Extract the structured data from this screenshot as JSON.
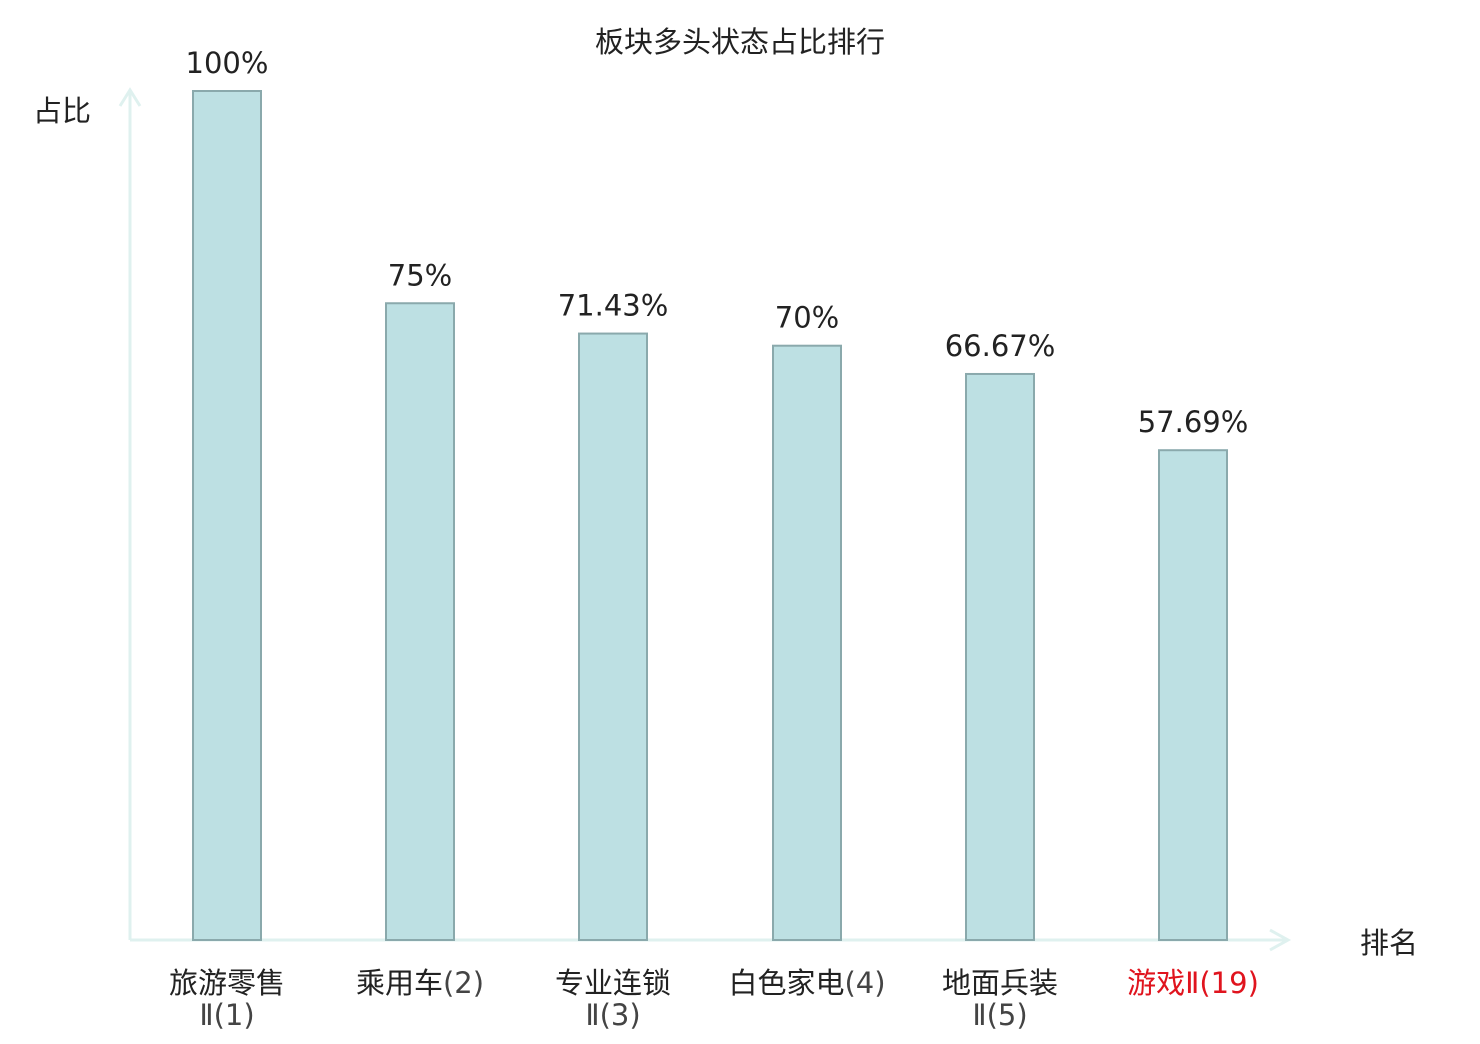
{
  "chart_data": {
    "type": "bar",
    "title": "板块多头状态占比排行",
    "ylabel": "占比",
    "xlabel": "排名",
    "categories": [
      {
        "name": "旅游零售",
        "rank": "Ⅱ(1)"
      },
      {
        "name": "乘用车",
        "rank": "(2)"
      },
      {
        "name": "专业连锁",
        "rank": "Ⅱ(3)"
      },
      {
        "name": "白色家电",
        "rank": "(4)"
      },
      {
        "name": "地面兵装",
        "rank": "Ⅱ(5)"
      },
      {
        "name": "游戏",
        "rank": "Ⅱ(19)"
      }
    ],
    "values": [
      100,
      75,
      71.43,
      70,
      66.67,
      57.69
    ],
    "value_labels": [
      "100%",
      "75%",
      "71.43%",
      "70%",
      "66.67%",
      "57.69%"
    ],
    "highlight_index": 5,
    "ylim": [
      0,
      100
    ],
    "grid": false,
    "colors": {
      "bar_fill": "#bde0e3",
      "bar_stroke": "#8aa9ac",
      "axis": "#dff1ef",
      "text": "#222222",
      "rank_text": "#444444",
      "highlight": "#e0141e"
    }
  }
}
